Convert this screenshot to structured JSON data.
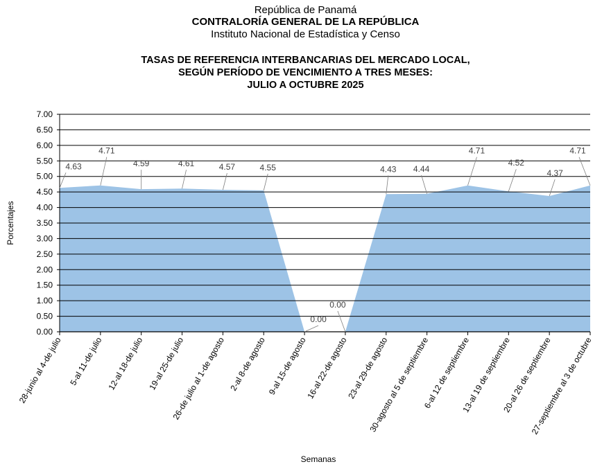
{
  "header": {
    "line1": "República de Panamá",
    "line2": "CONTRALORÍA GENERAL DE LA REPÚBLICA",
    "line3": "Instituto  Nacional de Estadística y Censo"
  },
  "chart_data": {
    "type": "area",
    "title_lines": [
      "TASAS DE REFERENCIA INTERBANCARIAS DEL MERCADO LOCAL,",
      "SEGÚN PERÍODO DE VENCIMIENTO A TRES MESES:",
      "JULIO A OCTUBRE 2025"
    ],
    "xlabel": "Semanas",
    "ylabel": "Porcentajes",
    "ylim": [
      0,
      7
    ],
    "y_ticks": [
      "0.00",
      "0.50",
      "1.00",
      "1.50",
      "2.00",
      "2.50",
      "3.00",
      "3.50",
      "4.00",
      "4.50",
      "5.00",
      "5.50",
      "6.00",
      "6.50",
      "7.00"
    ],
    "grid": true,
    "fill_color": "#9dc3e6",
    "categories": [
      "28-junio al 4-de julio",
      "5-al 11-de julio",
      "12-al 18-de julio",
      "19-al 25-de julio",
      "26-de julio al 1-de agosto",
      "2-al 8-de agosto",
      "9-al 15-de agosto",
      "16-al 22-de agosto",
      "23-al 29-de agosto",
      "30-agosto al 5 de septiembre",
      "6-al 12 de septiembre",
      "13-al 19 de septiembre",
      "20-al 26 de septiembre",
      "27-septiembre al 3 de octubre"
    ],
    "values": [
      4.63,
      4.71,
      4.59,
      4.61,
      4.57,
      4.55,
      0.0,
      0.0,
      4.43,
      4.44,
      4.71,
      4.52,
      4.37,
      4.71
    ],
    "data_labels": [
      "4.63",
      "4.71",
      "4.59",
      "4.61",
      "4.57",
      "4.55",
      "0.00",
      "0.00",
      "4.43",
      "4.44",
      "4.71",
      "4.52",
      "4.37",
      "4.71"
    ]
  }
}
